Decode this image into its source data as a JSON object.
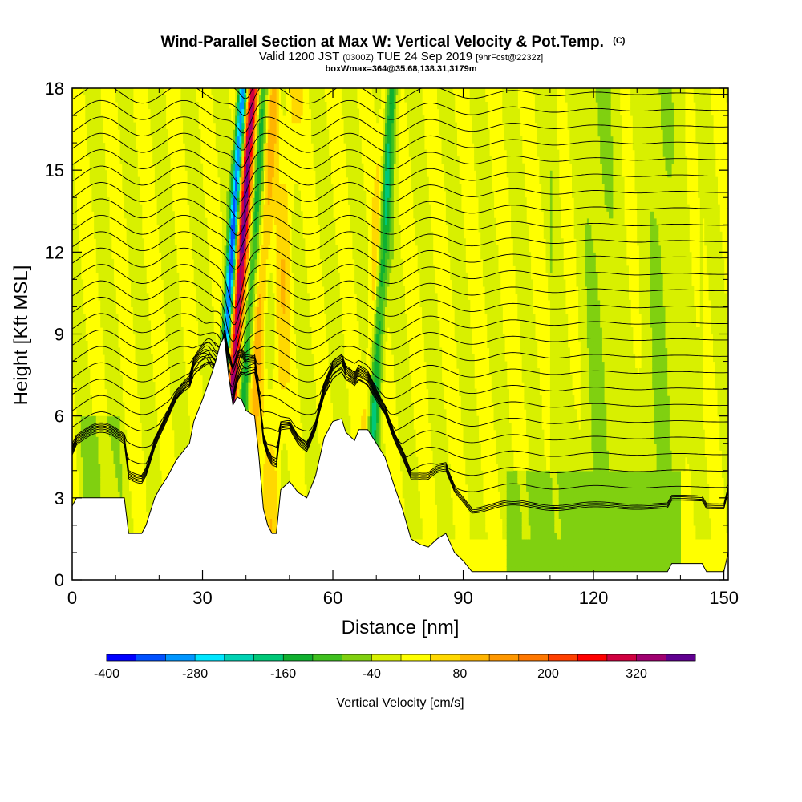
{
  "chart_data": {
    "type": "heatmap",
    "title": "Wind-Parallel Section at Max W: Vertical Velocity & Pot.Temp.",
    "title_suffix": "(C)",
    "subtitle_parts": [
      "Valid 1200 JST ",
      "(0300Z)",
      " TUE 24 Sep 2019 ",
      "[9hrFcst@2232z]"
    ],
    "subtitle2": "boxWmax=364@35.68,138.31,3179m",
    "xlabel": "Distance [nm]",
    "ylabel": "Height [Kft MSL]",
    "xlim": [
      0,
      151
    ],
    "ylim": [
      0,
      18
    ],
    "xticks": [
      0,
      30,
      60,
      90,
      120,
      150
    ],
    "yticks": [
      0,
      3,
      6,
      9,
      12,
      15,
      18
    ],
    "colorbar": {
      "label": "Vertical Velocity [cm/s]",
      "min": -400,
      "max": 400,
      "step": 40,
      "ticks": [
        -400,
        -280,
        -160,
        -40,
        80,
        200,
        320
      ],
      "colors": [
        "#0000ff",
        "#0050ff",
        "#0096ff",
        "#00e6ff",
        "#00d2b4",
        "#00c878",
        "#10b030",
        "#40c020",
        "#80d010",
        "#d8f000",
        "#ffff00",
        "#ffd800",
        "#ffb400",
        "#ff9800",
        "#ff7800",
        "#ff4000",
        "#ff0000",
        "#d00040",
        "#a00070",
        "#600090"
      ]
    },
    "terrain": [
      [
        0,
        2.7
      ],
      [
        1,
        3.0
      ],
      [
        12,
        3.0
      ],
      [
        13,
        1.7
      ],
      [
        16,
        1.7
      ],
      [
        17,
        2.0
      ],
      [
        19,
        3.0
      ],
      [
        20,
        3.3
      ],
      [
        22,
        3.8
      ],
      [
        24,
        4.4
      ],
      [
        27,
        5.0
      ],
      [
        28,
        5.8
      ],
      [
        30,
        6.6
      ],
      [
        32,
        7.5
      ],
      [
        33,
        8.0
      ],
      [
        34,
        8.6
      ],
      [
        35,
        8.9
      ],
      [
        36,
        7.5
      ],
      [
        37,
        6.4
      ],
      [
        38,
        6.7
      ],
      [
        39,
        6.6
      ],
      [
        40,
        6.2
      ],
      [
        42,
        6.0
      ],
      [
        43,
        4.5
      ],
      [
        44,
        2.6
      ],
      [
        45,
        2.0
      ],
      [
        46,
        1.7
      ],
      [
        47,
        1.7
      ],
      [
        48,
        3.3
      ],
      [
        50,
        3.6
      ],
      [
        52,
        3.2
      ],
      [
        54,
        3.0
      ],
      [
        56,
        3.8
      ],
      [
        58,
        5.2
      ],
      [
        60,
        5.8
      ],
      [
        62,
        5.9
      ],
      [
        63,
        5.4
      ],
      [
        65,
        5.1
      ],
      [
        66,
        5.5
      ],
      [
        68,
        5.5
      ],
      [
        70,
        5.0
      ],
      [
        72,
        4.5
      ],
      [
        74,
        3.5
      ],
      [
        76,
        2.6
      ],
      [
        78,
        1.5
      ],
      [
        80,
        1.3
      ],
      [
        82,
        1.2
      ],
      [
        84,
        1.5
      ],
      [
        86,
        1.7
      ],
      [
        88,
        1.0
      ],
      [
        90,
        0.7
      ],
      [
        92,
        0.3
      ],
      [
        96,
        0.3
      ],
      [
        98,
        0.3
      ],
      [
        110,
        0.3
      ],
      [
        120,
        0.3
      ],
      [
        130,
        0.3
      ],
      [
        137,
        0.3
      ],
      [
        138,
        0.6
      ],
      [
        145,
        0.6
      ],
      [
        146,
        0.3
      ],
      [
        150,
        0.3
      ],
      [
        151,
        1.0
      ]
    ]
  }
}
